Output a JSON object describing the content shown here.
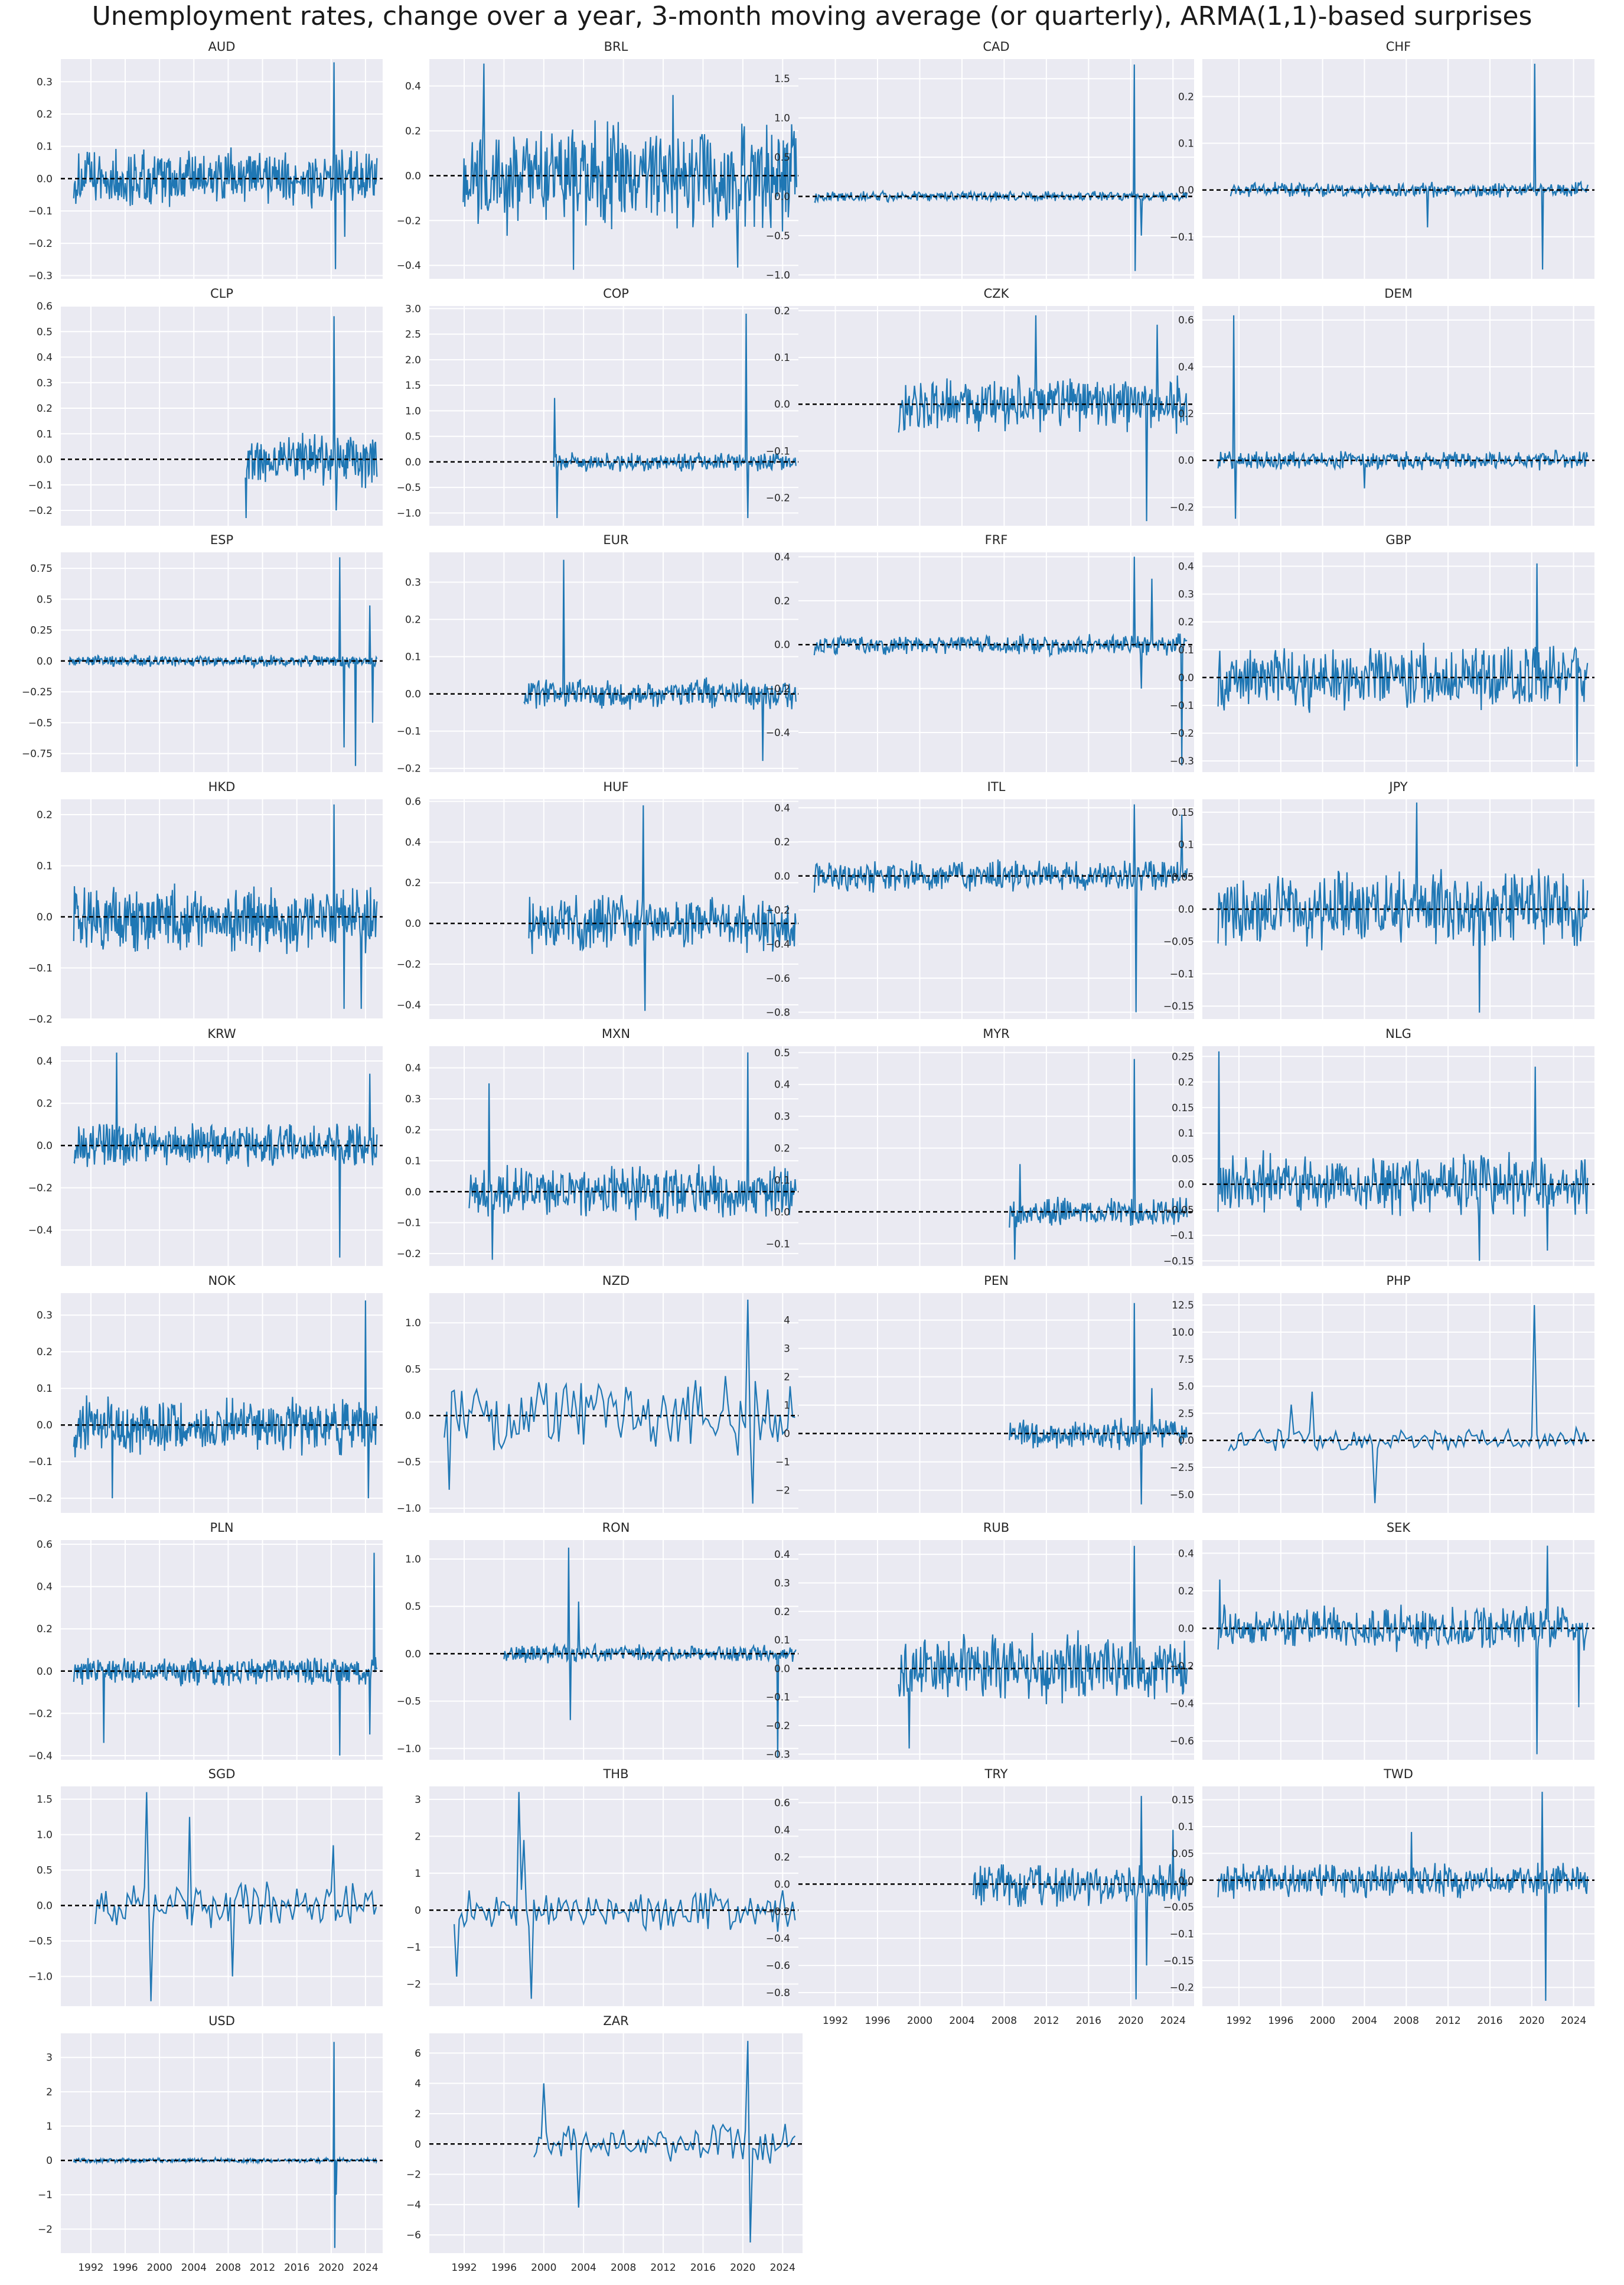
{
  "title": "Unemployment rates, change over a year, 3-month moving average (or quarterly), ARMA(1,1)-based surprises",
  "colors": {
    "background": "#eaeaf2",
    "grid": "#ffffff",
    "line": "#1f77b4",
    "zero_line": "#000000",
    "text": "#262626"
  },
  "x_axis": {
    "ticks": [
      1992,
      1996,
      2000,
      2004,
      2008,
      2012,
      2016,
      2020,
      2024
    ],
    "range": [
      1988.5,
      2026.0
    ]
  },
  "chart_data": [
    {
      "type": "line",
      "title": "AUD",
      "start": 1990.0,
      "end": 2025.4,
      "ylim": [
        -0.31,
        0.37
      ],
      "yticks": [
        -0.3,
        -0.2,
        -0.1,
        0.0,
        0.1,
        0.2,
        0.3
      ],
      "freq": "monthly",
      "amp": 0.07,
      "spikes": [
        [
          2020.3,
          0.36
        ],
        [
          2020.5,
          -0.28
        ],
        [
          2021.6,
          -0.18
        ]
      ]
    },
    {
      "type": "line",
      "title": "BRL",
      "start": 1991.9,
      "end": 2025.4,
      "ylim": [
        -0.46,
        0.52
      ],
      "yticks": [
        -0.4,
        -0.2,
        0.0,
        0.2,
        0.4
      ],
      "freq": "monthly",
      "amp": 0.18,
      "spikes": [
        [
          1994.0,
          0.5
        ],
        [
          2003.0,
          -0.42
        ],
        [
          2013.0,
          0.36
        ],
        [
          2019.5,
          -0.41
        ]
      ]
    },
    {
      "type": "line",
      "title": "CAD",
      "start": 1990.0,
      "end": 2025.4,
      "ylim": [
        -1.05,
        1.75
      ],
      "yticks": [
        -1.0,
        -0.5,
        0.0,
        0.5,
        1.0,
        1.5
      ],
      "freq": "monthly",
      "amp": 0.05,
      "spikes": [
        [
          2020.3,
          1.68
        ],
        [
          2020.4,
          -0.95
        ],
        [
          2021.0,
          -0.5
        ]
      ]
    },
    {
      "type": "line",
      "title": "CHF",
      "start": 1991.2,
      "end": 2025.4,
      "ylim": [
        -0.19,
        0.28
      ],
      "yticks": [
        -0.1,
        0.0,
        0.1,
        0.2
      ],
      "freq": "quarterly-then-monthly",
      "amp": 0.012,
      "spikes": [
        [
          2020.3,
          0.27
        ],
        [
          2021.0,
          -0.17
        ],
        [
          2010.0,
          -0.08
        ]
      ]
    },
    {
      "type": "line",
      "title": "CLP",
      "start": 2010.0,
      "end": 2025.4,
      "ylim": [
        -0.26,
        0.6
      ],
      "yticks": [
        -0.2,
        -0.1,
        0.0,
        0.1,
        0.2,
        0.3,
        0.4,
        0.5,
        0.6
      ],
      "freq": "monthly",
      "amp": 0.08,
      "spikes": [
        [
          2020.3,
          0.56
        ],
        [
          2020.6,
          -0.2
        ],
        [
          2010.1,
          -0.23
        ]
      ]
    },
    {
      "type": "line",
      "title": "COP",
      "start": 2001.0,
      "end": 2025.4,
      "ylim": [
        -1.25,
        3.05
      ],
      "yticks": [
        -1.0,
        -0.5,
        0.0,
        0.5,
        1.0,
        1.5,
        2.0,
        2.5,
        3.0
      ],
      "freq": "monthly",
      "amp": 0.14,
      "spikes": [
        [
          2020.3,
          2.9
        ],
        [
          2020.5,
          -1.1
        ],
        [
          2001.1,
          1.25
        ],
        [
          2001.3,
          -1.1
        ]
      ]
    },
    {
      "type": "line",
      "title": "CZK",
      "start": 1998.0,
      "end": 2025.4,
      "ylim": [
        -0.26,
        0.21
      ],
      "yticks": [
        -0.2,
        -0.1,
        0.0,
        0.1,
        0.2
      ],
      "freq": "monthly",
      "amp": 0.045,
      "spikes": [
        [
          2011.0,
          0.19
        ],
        [
          2021.5,
          -0.25
        ],
        [
          2022.5,
          0.17
        ]
      ]
    },
    {
      "type": "line",
      "title": "DEM",
      "start": 1990.0,
      "end": 2025.4,
      "ylim": [
        -0.28,
        0.66
      ],
      "yticks": [
        -0.2,
        0.0,
        0.2,
        0.4,
        0.6
      ],
      "freq": "monthly",
      "amp": 0.03,
      "spikes": [
        [
          1991.5,
          0.62
        ],
        [
          1991.7,
          -0.25
        ],
        [
          2004.0,
          -0.12
        ]
      ]
    },
    {
      "type": "line",
      "title": "ESP",
      "start": 1989.5,
      "end": 2025.4,
      "ylim": [
        -0.9,
        0.88
      ],
      "yticks": [
        -0.75,
        -0.5,
        -0.25,
        0.0,
        0.25,
        0.5,
        0.75
      ],
      "freq": "monthly",
      "amp": 0.035,
      "spikes": [
        [
          2021.0,
          0.84
        ],
        [
          2021.5,
          -0.7
        ],
        [
          2022.8,
          -0.85
        ],
        [
          2024.5,
          0.45
        ],
        [
          2024.8,
          -0.5
        ]
      ]
    },
    {
      "type": "line",
      "title": "EUR",
      "start": 1998.0,
      "end": 2025.4,
      "ylim": [
        -0.21,
        0.38
      ],
      "yticks": [
        -0.2,
        -0.1,
        0.0,
        0.1,
        0.2,
        0.3
      ],
      "freq": "quarterly-then-monthly",
      "amp": 0.03,
      "spikes": [
        [
          2002.0,
          0.36
        ],
        [
          2022.0,
          -0.18
        ]
      ]
    },
    {
      "type": "line",
      "title": "FRF",
      "start": 1990.0,
      "end": 2025.4,
      "ylim": [
        -0.58,
        0.42
      ],
      "yticks": [
        -0.4,
        -0.2,
        0.0,
        0.2,
        0.4
      ],
      "freq": "monthly",
      "amp": 0.035,
      "spikes": [
        [
          2020.3,
          0.4
        ],
        [
          2021.0,
          -0.2
        ],
        [
          2024.8,
          -0.55
        ],
        [
          2022.0,
          0.3
        ]
      ]
    },
    {
      "type": "line",
      "title": "GBP",
      "start": 1990.0,
      "end": 2025.4,
      "ylim": [
        -0.34,
        0.45
      ],
      "yticks": [
        -0.3,
        -0.2,
        -0.1,
        0.0,
        0.1,
        0.2,
        0.3,
        0.4
      ],
      "freq": "monthly",
      "amp": 0.09,
      "spikes": [
        [
          2020.5,
          0.41
        ],
        [
          2024.3,
          -0.32
        ]
      ]
    },
    {
      "type": "line",
      "title": "HKD",
      "start": 1990.0,
      "end": 2025.4,
      "ylim": [
        -0.2,
        0.23
      ],
      "yticks": [
        -0.2,
        -0.1,
        0.0,
        0.1,
        0.2
      ],
      "freq": "monthly",
      "amp": 0.05,
      "spikes": [
        [
          2020.3,
          0.22
        ],
        [
          2021.5,
          -0.18
        ],
        [
          2023.5,
          -0.18
        ]
      ]
    },
    {
      "type": "line",
      "title": "HUF",
      "start": 1998.5,
      "end": 2025.4,
      "ylim": [
        -0.47,
        0.61
      ],
      "yticks": [
        -0.4,
        -0.2,
        0.0,
        0.2,
        0.4,
        0.6
      ],
      "freq": "monthly",
      "amp": 0.1,
      "spikes": [
        [
          2010.0,
          0.58
        ],
        [
          2010.2,
          -0.43
        ],
        [
          1998.6,
          0.13
        ],
        [
          1998.8,
          -0.15
        ]
      ]
    },
    {
      "type": "line",
      "title": "ITL",
      "start": 1990.0,
      "end": 2025.4,
      "ylim": [
        -0.84,
        0.45
      ],
      "yticks": [
        -0.8,
        -0.6,
        -0.4,
        -0.2,
        0.0,
        0.2,
        0.4
      ],
      "freq": "monthly",
      "amp": 0.07,
      "spikes": [
        [
          2020.3,
          0.42
        ],
        [
          2020.5,
          -0.8
        ],
        [
          2024.8,
          0.36
        ]
      ]
    },
    {
      "type": "line",
      "title": "JPY",
      "start": 1990.0,
      "end": 2025.4,
      "ylim": [
        -0.17,
        0.17
      ],
      "yticks": [
        -0.15,
        -0.1,
        -0.05,
        0.0,
        0.05,
        0.1,
        0.15
      ],
      "freq": "monthly",
      "amp": 0.045,
      "spikes": [
        [
          2009.0,
          0.165
        ],
        [
          2015.0,
          -0.16
        ]
      ]
    },
    {
      "type": "line",
      "title": "KRW",
      "start": 1990.0,
      "end": 2025.4,
      "ylim": [
        -0.57,
        0.47
      ],
      "yticks": [
        -0.4,
        -0.2,
        0.0,
        0.2,
        0.4
      ],
      "freq": "monthly",
      "amp": 0.08,
      "spikes": [
        [
          1995.0,
          0.44
        ],
        [
          2021.0,
          -0.53
        ],
        [
          2024.5,
          0.34
        ]
      ]
    },
    {
      "type": "line",
      "title": "MXN",
      "start": 1992.5,
      "end": 2025.4,
      "ylim": [
        -0.24,
        0.47
      ],
      "yticks": [
        -0.2,
        -0.1,
        0.0,
        0.1,
        0.2,
        0.3,
        0.4
      ],
      "freq": "monthly",
      "amp": 0.07,
      "spikes": [
        [
          2020.5,
          0.45
        ],
        [
          1994.5,
          0.35
        ],
        [
          1994.8,
          -0.22
        ]
      ]
    },
    {
      "type": "line",
      "title": "MYR",
      "start": 2008.5,
      "end": 2025.4,
      "ylim": [
        -0.17,
        0.52
      ],
      "yticks": [
        -0.1,
        0.0,
        0.1,
        0.2,
        0.3,
        0.4,
        0.5
      ],
      "freq": "monthly",
      "amp": 0.035,
      "spikes": [
        [
          2020.3,
          0.48
        ],
        [
          2009.0,
          -0.15
        ],
        [
          2009.5,
          0.15
        ]
      ]
    },
    {
      "type": "line",
      "title": "NLG",
      "start": 1990.0,
      "end": 2025.4,
      "ylim": [
        -0.16,
        0.27
      ],
      "yticks": [
        -0.15,
        -0.1,
        -0.05,
        0.0,
        0.05,
        0.1,
        0.15,
        0.2,
        0.25
      ],
      "freq": "monthly",
      "amp": 0.045,
      "spikes": [
        [
          1990.1,
          0.26
        ],
        [
          2020.3,
          0.23
        ],
        [
          2021.5,
          -0.13
        ],
        [
          2015.0,
          -0.15
        ]
      ]
    },
    {
      "type": "line",
      "title": "NOK",
      "start": 1990.0,
      "end": 2025.4,
      "ylim": [
        -0.24,
        0.36
      ],
      "yticks": [
        -0.2,
        -0.1,
        0.0,
        0.1,
        0.2,
        0.3
      ],
      "freq": "monthly",
      "amp": 0.06,
      "spikes": [
        [
          2024.0,
          0.34
        ],
        [
          1994.5,
          -0.2
        ],
        [
          2024.3,
          -0.2
        ]
      ]
    },
    {
      "type": "line",
      "title": "NZD",
      "start": 1990.0,
      "end": 2025.4,
      "ylim": [
        -1.05,
        1.32
      ],
      "yticks": [
        -1.0,
        -0.5,
        0.0,
        0.5,
        1.0
      ],
      "freq": "quarterly",
      "amp": 0.3,
      "spikes": [
        [
          2020.5,
          1.25
        ],
        [
          2021.0,
          -0.95
        ],
        [
          1990.5,
          -0.8
        ]
      ]
    },
    {
      "type": "line",
      "title": "PEN",
      "start": 2008.5,
      "end": 2025.4,
      "ylim": [
        -2.8,
        4.95
      ],
      "yticks": [
        -2,
        -1,
        0,
        1,
        2,
        3,
        4
      ],
      "freq": "monthly",
      "amp": 0.4,
      "spikes": [
        [
          2020.3,
          4.6
        ],
        [
          2021.0,
          -2.5
        ],
        [
          2022.0,
          1.6
        ]
      ]
    },
    {
      "type": "line",
      "title": "PHP",
      "start": 1991.0,
      "end": 2025.4,
      "ylim": [
        -6.7,
        13.6
      ],
      "yticks": [
        -5.0,
        -2.5,
        0.0,
        2.5,
        5.0,
        7.5,
        10.0,
        12.5
      ],
      "freq": "quarterly",
      "amp": 0.8,
      "spikes": [
        [
          2020.3,
          12.5
        ],
        [
          2005.0,
          -5.8
        ],
        [
          1999.0,
          4.5
        ],
        [
          1997.0,
          3.3
        ]
      ]
    },
    {
      "type": "line",
      "title": "PLN",
      "start": 1990.0,
      "end": 2025.4,
      "ylim": [
        -0.42,
        0.62
      ],
      "yticks": [
        -0.4,
        -0.2,
        0.0,
        0.2,
        0.4,
        0.6
      ],
      "freq": "monthly",
      "amp": 0.05,
      "spikes": [
        [
          2025.0,
          0.56
        ],
        [
          1993.5,
          -0.34
        ],
        [
          2021.0,
          -0.4
        ],
        [
          2024.5,
          -0.3
        ]
      ]
    },
    {
      "type": "line",
      "title": "RON",
      "start": 1996.0,
      "end": 2025.4,
      "ylim": [
        -1.12,
        1.2
      ],
      "yticks": [
        -1.0,
        -0.5,
        0.0,
        0.5,
        1.0
      ],
      "freq": "monthly",
      "amp": 0.07,
      "spikes": [
        [
          2002.5,
          1.12
        ],
        [
          2002.7,
          -0.7
        ],
        [
          2023.5,
          -1.1
        ],
        [
          2003.5,
          0.55
        ]
      ]
    },
    {
      "type": "line",
      "title": "RUB",
      "start": 1998.0,
      "end": 2025.4,
      "ylim": [
        -0.32,
        0.45
      ],
      "yticks": [
        -0.3,
        -0.2,
        -0.1,
        0.0,
        0.1,
        0.2,
        0.3,
        0.4
      ],
      "freq": "monthly",
      "amp": 0.09,
      "spikes": [
        [
          2020.3,
          0.43
        ],
        [
          1999.0,
          -0.28
        ]
      ]
    },
    {
      "type": "line",
      "title": "SEK",
      "start": 1990.0,
      "end": 2025.4,
      "ylim": [
        -0.7,
        0.47
      ],
      "yticks": [
        -0.6,
        -0.4,
        -0.2,
        0.0,
        0.2,
        0.4
      ],
      "freq": "monthly",
      "amp": 0.09,
      "spikes": [
        [
          2020.5,
          -0.67
        ],
        [
          2021.5,
          0.44
        ],
        [
          2024.5,
          -0.42
        ],
        [
          1990.2,
          0.26
        ]
      ]
    },
    {
      "type": "line",
      "title": "SGD",
      "start": 1992.5,
      "end": 2025.4,
      "ylim": [
        -1.42,
        1.68
      ],
      "yticks": [
        -1.0,
        -0.5,
        0.0,
        0.5,
        1.0,
        1.5
      ],
      "freq": "quarterly",
      "amp": 0.25,
      "spikes": [
        [
          1998.5,
          1.6
        ],
        [
          1999.0,
          -1.35
        ],
        [
          2003.5,
          1.25
        ],
        [
          2008.5,
          -1.0
        ],
        [
          2020.3,
          0.85
        ]
      ]
    },
    {
      "type": "line",
      "title": "THB",
      "start": 1991.0,
      "end": 2025.4,
      "ylim": [
        -2.6,
        3.35
      ],
      "yticks": [
        -2,
        -1,
        0,
        1,
        2,
        3
      ],
      "freq": "quarterly",
      "amp": 0.45,
      "spikes": [
        [
          1997.5,
          3.2
        ],
        [
          1998.0,
          1.9
        ],
        [
          1998.7,
          -2.4
        ],
        [
          1991.2,
          -1.8
        ]
      ]
    },
    {
      "type": "line",
      "title": "TRY",
      "start": 2005.0,
      "end": 2025.4,
      "ylim": [
        -0.9,
        0.72
      ],
      "yticks": [
        -0.8,
        -0.6,
        -0.4,
        -0.2,
        0.0,
        0.2,
        0.4,
        0.6
      ],
      "freq": "monthly",
      "amp": 0.12,
      "spikes": [
        [
          2021.0,
          0.65
        ],
        [
          2020.5,
          -0.85
        ],
        [
          2021.5,
          -0.6
        ],
        [
          2024.0,
          0.4
        ]
      ]
    },
    {
      "type": "line",
      "title": "TWD",
      "start": 1990.0,
      "end": 2025.4,
      "ylim": [
        -0.235,
        0.175
      ],
      "yticks": [
        -0.2,
        -0.15,
        -0.1,
        -0.05,
        0.0,
        0.05,
        0.1,
        0.15
      ],
      "freq": "monthly",
      "amp": 0.025,
      "spikes": [
        [
          2021.0,
          0.165
        ],
        [
          2021.3,
          -0.225
        ],
        [
          2008.5,
          0.09
        ]
      ]
    },
    {
      "type": "line",
      "title": "USD",
      "start": 1990.0,
      "end": 2025.4,
      "ylim": [
        -2.7,
        3.7
      ],
      "yticks": [
        -2,
        -1,
        0,
        1,
        2,
        3
      ],
      "freq": "monthly",
      "amp": 0.05,
      "spikes": [
        [
          2020.3,
          3.45
        ],
        [
          2020.4,
          -2.55
        ],
        [
          2020.6,
          -1.0
        ]
      ]
    },
    {
      "type": "line",
      "title": "ZAR",
      "start": 1999.0,
      "end": 2025.4,
      "ylim": [
        -7.2,
        7.3
      ],
      "yticks": [
        -6,
        -4,
        -2,
        0,
        2,
        4,
        6
      ],
      "freq": "quarterly",
      "amp": 1.0,
      "spikes": [
        [
          2020.5,
          6.8
        ],
        [
          2020.8,
          -6.5
        ],
        [
          2000.0,
          4.0
        ],
        [
          2003.5,
          -4.2
        ]
      ]
    }
  ]
}
